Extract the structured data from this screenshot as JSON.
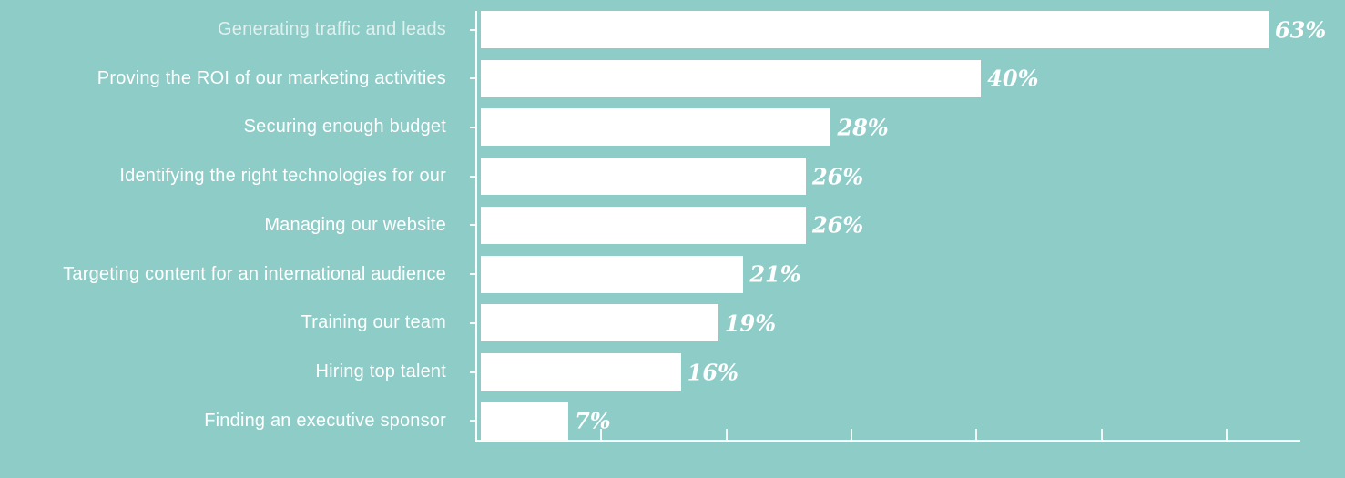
{
  "chart_data": {
    "type": "bar",
    "orientation": "horizontal",
    "title": "",
    "xlabel": "",
    "ylabel": "",
    "categories": [
      "Generating traffic and leads",
      "Proving the ROI of our marketing activities",
      "Securing enough budget",
      "Identifying the right technologies for our",
      "Managing our website",
      "Targeting content for an international audience",
      "Training our team",
      "Hiring top talent",
      "Finding an executive sponsor"
    ],
    "values": [
      63,
      40,
      28,
      26,
      26,
      21,
      19,
      16,
      7
    ],
    "value_labels": [
      "63%",
      "40%",
      "28%",
      "26%",
      "26%",
      "21%",
      "19%",
      "16%",
      "7%"
    ],
    "xlim": [
      0,
      66
    ],
    "x_ticks": [
      10,
      20,
      30,
      40,
      50,
      60
    ],
    "grid": false,
    "legend": null,
    "colors": {
      "background": "#8ECCC7",
      "bar": "#FFFFFF",
      "category_text": "#FFFFFF",
      "value_text": "#FFFFFF",
      "axis": "#FFFFFF"
    }
  }
}
